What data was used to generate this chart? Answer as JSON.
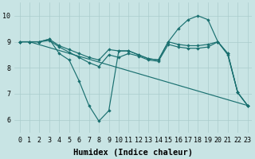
{
  "xlabel": "Humidex (Indice chaleur)",
  "bg_color": "#c8e4e4",
  "grid_color": "#aacccc",
  "line_color": "#1a7070",
  "xlim_min": -0.5,
  "xlim_max": 23.4,
  "ylim_min": 5.5,
  "ylim_max": 10.5,
  "xticks": [
    0,
    1,
    2,
    3,
    4,
    5,
    6,
    7,
    8,
    9,
    10,
    11,
    12,
    13,
    14,
    15,
    16,
    17,
    18,
    19,
    20,
    21,
    22,
    23
  ],
  "yticks": [
    6,
    7,
    8,
    9,
    10
  ],
  "line1_x": [
    0,
    1,
    2,
    3,
    4,
    5,
    6,
    7,
    8,
    9,
    10,
    11,
    12,
    13,
    14,
    15,
    16,
    17,
    18,
    19,
    20,
    21,
    22,
    23
  ],
  "line1_y": [
    9.0,
    9.0,
    9.0,
    9.1,
    8.55,
    8.3,
    7.5,
    6.55,
    5.95,
    6.35,
    8.65,
    8.65,
    8.5,
    8.35,
    8.3,
    9.0,
    9.5,
    9.85,
    10.0,
    9.85,
    9.0,
    8.55,
    7.05,
    6.55
  ],
  "line2_x": [
    0,
    1,
    2,
    3,
    4,
    5,
    6,
    7,
    8,
    9,
    10,
    11,
    12,
    13,
    14,
    15,
    16,
    17,
    18,
    19,
    20,
    21,
    22,
    23
  ],
  "line2_y": [
    9.0,
    9.0,
    9.0,
    9.1,
    8.85,
    8.7,
    8.55,
    8.4,
    8.3,
    8.7,
    8.65,
    8.65,
    8.5,
    8.35,
    8.3,
    9.0,
    8.9,
    8.85,
    8.85,
    8.9,
    9.0,
    8.55,
    7.05,
    6.55
  ],
  "line3_x": [
    0,
    1,
    2,
    3,
    4,
    5,
    6,
    7,
    8,
    9,
    10,
    11,
    12,
    13,
    14,
    15,
    16,
    17,
    18,
    19,
    20,
    21,
    22,
    23
  ],
  "line3_y": [
    9.0,
    9.0,
    9.0,
    9.05,
    8.8,
    8.6,
    8.4,
    8.2,
    8.05,
    8.5,
    8.4,
    8.55,
    8.45,
    8.3,
    8.25,
    8.9,
    8.8,
    8.75,
    8.75,
    8.8,
    9.0,
    8.5,
    7.05,
    6.55
  ],
  "line4_x": [
    0,
    1,
    23
  ],
  "line4_y": [
    9.0,
    9.0,
    6.55
  ],
  "markersize": 2.2,
  "linewidth": 0.85,
  "tick_fontsize": 6,
  "xlabel_fontsize": 7.5,
  "font_family": "monospace"
}
